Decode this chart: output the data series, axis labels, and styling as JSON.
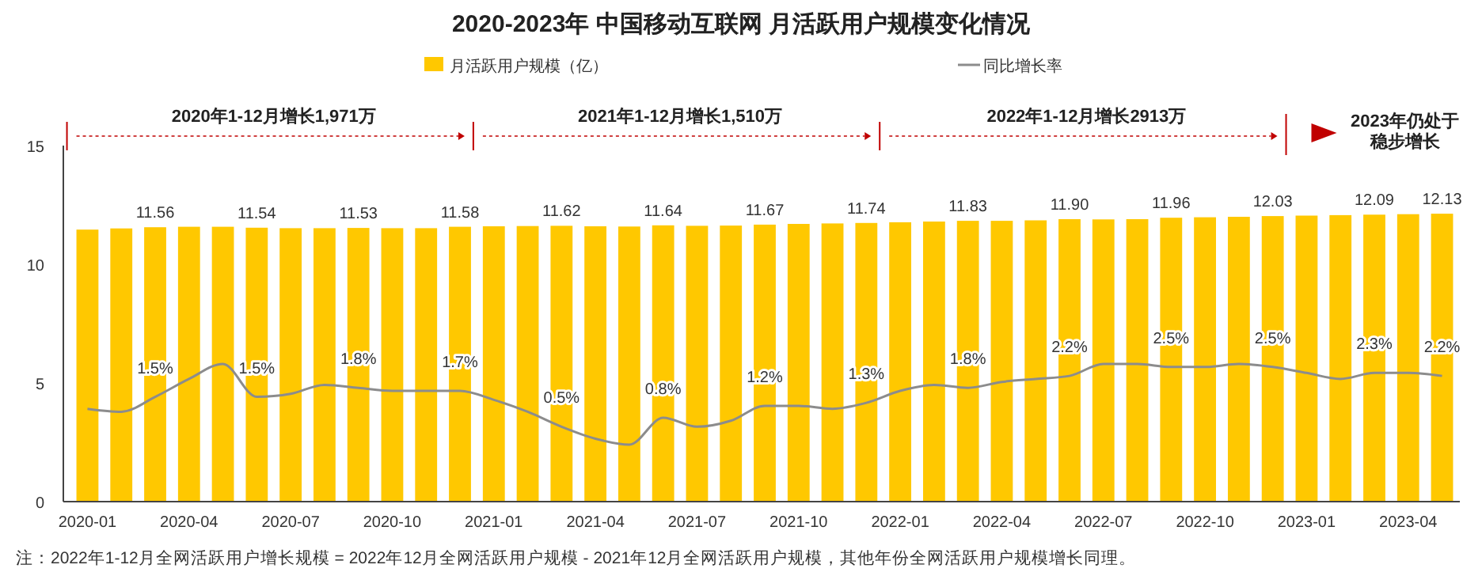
{
  "chart_data": [
    {
      "type": "bar",
      "title": "2020-2023年 中国移动互联网 月活跃用户规模变化情况",
      "categories": [
        "2020-01",
        null,
        null,
        "2020-04",
        null,
        null,
        "2020-07",
        null,
        null,
        "2020-10",
        null,
        null,
        "2021-01",
        null,
        null,
        "2021-04",
        null,
        null,
        "2021-07",
        null,
        null,
        "2021-10",
        null,
        null,
        "2022-01",
        null,
        null,
        "2022-04",
        null,
        null,
        "2022-07",
        null,
        null,
        "2022-10",
        null,
        null,
        "2023-01",
        null,
        null,
        "2023-04",
        null
      ],
      "series": [
        {
          "name": "月活跃用户规模（亿）",
          "color": "#ffc800",
          "values": [
            11.46,
            11.51,
            11.56,
            11.58,
            11.58,
            11.54,
            11.52,
            11.52,
            11.53,
            11.52,
            11.52,
            11.58,
            11.6,
            11.61,
            11.62,
            11.6,
            11.59,
            11.64,
            11.62,
            11.63,
            11.67,
            11.7,
            11.72,
            11.74,
            11.77,
            11.8,
            11.83,
            11.83,
            11.85,
            11.9,
            11.89,
            11.9,
            11.96,
            11.98,
            12.0,
            12.03,
            12.05,
            12.07,
            12.09,
            12.11,
            12.13
          ],
          "value_labels": [
            null,
            null,
            "11.56",
            null,
            null,
            "11.54",
            null,
            null,
            "11.53",
            null,
            null,
            "11.58",
            null,
            null,
            "11.62",
            null,
            null,
            "11.64",
            null,
            null,
            "11.67",
            null,
            null,
            "11.74",
            null,
            null,
            "11.83",
            null,
            null,
            "11.90",
            null,
            null,
            "11.96",
            null,
            null,
            "12.03",
            null,
            null,
            "12.09",
            null,
            "12.13"
          ]
        }
      ],
      "ylim": [
        0,
        15
      ],
      "yticks": [
        0,
        5,
        10,
        15
      ],
      "legend": "top",
      "annotations": [
        "2020年1-12月增长1,971万",
        "2021年1-12月增长1,510万",
        "2022年1-12月增长2913万",
        "2023年仍处于稳步增长",
        "注：2022年1-12月全网活跃用户增长规模 = 2022年12月全网活跃用户规模 - 2021年12月全网活跃用户规模，其他年份全网活跃用户规模增长同理。"
      ]
    },
    {
      "type": "line",
      "categories": [
        null,
        null,
        null,
        null,
        null,
        null,
        null,
        null,
        null,
        null,
        null,
        null,
        null,
        null,
        null,
        null,
        null,
        null,
        null,
        null,
        null,
        null,
        null,
        null,
        null,
        null,
        null,
        null,
        null,
        null,
        null,
        null,
        null,
        null,
        null,
        null,
        null,
        null,
        null,
        null,
        null
      ],
      "series": [
        {
          "name": "同比增长率",
          "color": "#8c8c8c",
          "values": [
            1.1,
            1.0,
            1.5,
            2.1,
            2.6,
            1.5,
            1.6,
            1.9,
            1.8,
            1.7,
            1.7,
            1.7,
            1.4,
            1.0,
            0.5,
            0.1,
            -0.1,
            0.8,
            0.5,
            0.7,
            1.2,
            1.2,
            1.1,
            1.3,
            1.7,
            1.9,
            1.8,
            2.0,
            2.1,
            2.2,
            2.6,
            2.6,
            2.5,
            2.5,
            2.6,
            2.5,
            2.3,
            2.1,
            2.3,
            2.3,
            2.2
          ],
          "value_labels": [
            null,
            null,
            "1.5%",
            null,
            null,
            "1.5%",
            null,
            null,
            "1.8%",
            null,
            null,
            "1.7%",
            null,
            null,
            "0.5%",
            null,
            null,
            "0.8%",
            null,
            null,
            "1.2%",
            null,
            null,
            "1.3%",
            null,
            null,
            "1.8%",
            null,
            null,
            "2.2%",
            null,
            null,
            "2.5%",
            null,
            null,
            "2.5%",
            null,
            null,
            "2.3%",
            null,
            "2.2%"
          ]
        }
      ],
      "tick_labels": false,
      "legend": "top",
      "line_style": "solid",
      "marker": "none"
    }
  ]
}
